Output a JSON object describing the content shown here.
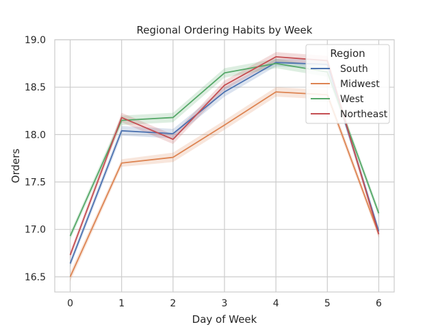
{
  "chart_data": {
    "type": "line",
    "title": "Regional Ordering Habits by Week",
    "xlabel": "Day of Week",
    "ylabel": "Orders",
    "x": [
      0,
      1,
      2,
      3,
      4,
      5,
      6
    ],
    "x_tick_labels": [
      "0",
      "1",
      "2",
      "3",
      "4",
      "5",
      "6"
    ],
    "y_ticks": [
      16.5,
      17.0,
      17.5,
      18.0,
      18.5,
      19.0
    ],
    "y_tick_labels": [
      "16.5",
      "17.0",
      "17.5",
      "18.0",
      "18.5",
      "19.0"
    ],
    "xlim": [
      -0.3,
      6.3
    ],
    "ylim": [
      16.34,
      19.0
    ],
    "grid": true,
    "legend": {
      "title": "Region",
      "placement": "top-right"
    },
    "series": [
      {
        "name": "South",
        "color": "#4c72b0",
        "values": [
          16.64,
          18.04,
          18.01,
          18.45,
          18.76,
          18.74,
          16.98
        ],
        "ci_low": [
          16.6,
          17.99,
          17.96,
          18.4,
          18.72,
          18.69,
          16.94
        ],
        "ci_high": [
          16.68,
          18.09,
          18.06,
          18.5,
          18.8,
          18.79,
          17.02
        ]
      },
      {
        "name": "Midwest",
        "color": "#dd8452",
        "values": [
          16.5,
          17.7,
          17.76,
          18.1,
          18.45,
          18.42,
          16.95
        ],
        "ci_low": [
          16.45,
          17.66,
          17.71,
          18.05,
          18.4,
          18.37,
          16.91
        ],
        "ci_high": [
          16.55,
          17.74,
          17.81,
          18.15,
          18.5,
          18.47,
          16.99
        ]
      },
      {
        "name": "West",
        "color": "#55a868",
        "values": [
          16.93,
          18.15,
          18.18,
          18.65,
          18.75,
          18.66,
          17.17
        ],
        "ci_low": [
          16.89,
          18.1,
          18.13,
          18.6,
          18.7,
          18.61,
          17.13
        ],
        "ci_high": [
          16.97,
          18.2,
          18.23,
          18.7,
          18.8,
          18.71,
          17.21
        ]
      },
      {
        "name": "Northeast",
        "color": "#c44e52",
        "values": [
          16.73,
          18.18,
          17.95,
          18.52,
          18.82,
          18.78,
          16.95
        ],
        "ci_low": [
          16.69,
          18.13,
          17.9,
          18.47,
          18.77,
          18.73,
          16.91
        ],
        "ci_high": [
          16.77,
          18.23,
          18.0,
          18.57,
          18.87,
          18.83,
          16.99
        ]
      }
    ]
  }
}
